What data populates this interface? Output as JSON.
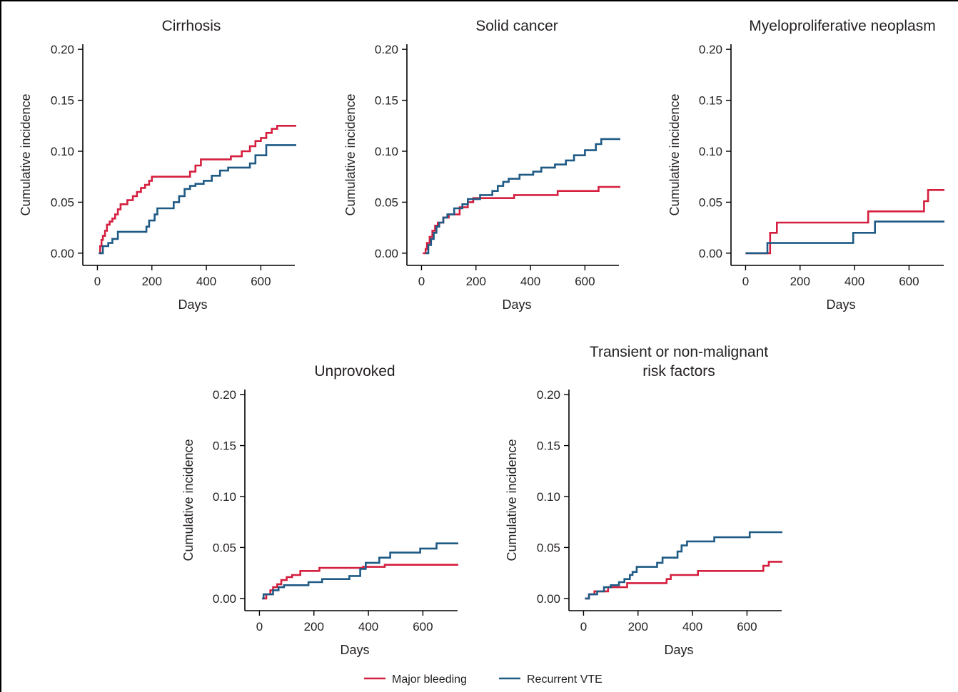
{
  "colors": {
    "major_bleeding": "#d41f3f",
    "recurrent_vte": "#1f5a85",
    "axis": "#000000",
    "text": "#231f20"
  },
  "legend": {
    "placement": "bottom-center",
    "items": [
      {
        "label": "Major bleeding",
        "color": "#d41f3f"
      },
      {
        "label": "Recurrent VTE",
        "color": "#1f5a85"
      }
    ]
  },
  "chart_data": [
    {
      "type": "line",
      "step": true,
      "title": "Cirrhosis",
      "xlabel": "Days",
      "ylabel": "Cumulative incidence",
      "xlim": [
        -30,
        730
      ],
      "ylim": [
        -0.012,
        0.205
      ],
      "xticks": [
        0,
        200,
        400,
        600
      ],
      "yticks": [
        "0.00",
        "0.05",
        "0.10",
        "0.15",
        "0.20"
      ],
      "series": [
        {
          "name": "Major bleeding",
          "color": "#d41f3f",
          "x": [
            5,
            10,
            15,
            20,
            28,
            35,
            45,
            55,
            65,
            75,
            85,
            110,
            130,
            145,
            160,
            175,
            190,
            200,
            220,
            340,
            360,
            380,
            490,
            530,
            560,
            580,
            600,
            620,
            640,
            660,
            730
          ],
          "y": [
            0,
            0.007,
            0.013,
            0.017,
            0.022,
            0.028,
            0.031,
            0.034,
            0.038,
            0.043,
            0.048,
            0.052,
            0.056,
            0.06,
            0.064,
            0.067,
            0.071,
            0.075,
            0.075,
            0.08,
            0.086,
            0.092,
            0.095,
            0.1,
            0.105,
            0.11,
            0.113,
            0.118,
            0.122,
            0.125,
            0.125
          ]
        },
        {
          "name": "Recurrent VTE",
          "color": "#1f5a85",
          "x": [
            5,
            20,
            40,
            55,
            75,
            180,
            190,
            210,
            220,
            280,
            300,
            320,
            340,
            360,
            390,
            420,
            450,
            480,
            560,
            580,
            620,
            730
          ],
          "y": [
            0,
            0.007,
            0.01,
            0.014,
            0.021,
            0.026,
            0.032,
            0.038,
            0.044,
            0.05,
            0.056,
            0.063,
            0.066,
            0.068,
            0.071,
            0.076,
            0.081,
            0.084,
            0.088,
            0.096,
            0.106,
            0.106
          ]
        }
      ]
    },
    {
      "type": "line",
      "step": true,
      "title": "Solid cancer",
      "xlabel": "Days",
      "ylabel": "Cumulative incidence",
      "xlim": [
        -30,
        730
      ],
      "ylim": [
        -0.012,
        0.205
      ],
      "xticks": [
        0,
        200,
        400,
        600
      ],
      "yticks": [
        "0.00",
        "0.05",
        "0.10",
        "0.15",
        "0.20"
      ],
      "series": [
        {
          "name": "Major bleeding",
          "color": "#d41f3f",
          "x": [
            5,
            15,
            20,
            30,
            40,
            50,
            60,
            80,
            100,
            140,
            170,
            190,
            340,
            500,
            650,
            730
          ],
          "y": [
            0,
            0.004,
            0.01,
            0.016,
            0.022,
            0.027,
            0.03,
            0.035,
            0.038,
            0.045,
            0.05,
            0.054,
            0.057,
            0.061,
            0.065,
            0.065
          ]
        },
        {
          "name": "Recurrent VTE",
          "color": "#1f5a85",
          "x": [
            15,
            25,
            35,
            45,
            55,
            65,
            80,
            95,
            120,
            150,
            170,
            215,
            260,
            280,
            300,
            320,
            360,
            410,
            440,
            490,
            530,
            560,
            600,
            640,
            660,
            730
          ],
          "y": [
            0,
            0.008,
            0.014,
            0.02,
            0.026,
            0.03,
            0.035,
            0.038,
            0.044,
            0.048,
            0.053,
            0.057,
            0.061,
            0.066,
            0.07,
            0.073,
            0.077,
            0.08,
            0.084,
            0.087,
            0.091,
            0.096,
            0.101,
            0.107,
            0.112,
            0.112
          ]
        }
      ]
    },
    {
      "type": "line",
      "step": true,
      "title": "Myeloproliferative neoplasm",
      "xlabel": "Days",
      "ylabel": "Cumulative incidence",
      "xlim": [
        -30,
        730
      ],
      "ylim": [
        -0.012,
        0.205
      ],
      "xticks": [
        0,
        200,
        400,
        600
      ],
      "yticks": [
        "0.00",
        "0.05",
        "0.10",
        "0.15",
        "0.20"
      ],
      "series": [
        {
          "name": "Major bleeding",
          "color": "#d41f3f",
          "x": [
            0,
            90,
            115,
            450,
            655,
            670,
            730
          ],
          "y": [
            0,
            0.02,
            0.03,
            0.041,
            0.051,
            0.062,
            0.062
          ]
        },
        {
          "name": "Recurrent VTE",
          "color": "#1f5a85",
          "x": [
            0,
            80,
            395,
            475,
            730
          ],
          "y": [
            0,
            0.01,
            0.02,
            0.031,
            0.031
          ]
        }
      ]
    },
    {
      "type": "line",
      "step": true,
      "title": "Unprovoked",
      "xlabel": "Days",
      "ylabel": "Cumulative incidence",
      "xlim": [
        -30,
        730
      ],
      "ylim": [
        -0.012,
        0.205
      ],
      "xticks": [
        0,
        200,
        400,
        600
      ],
      "yticks": [
        "0.00",
        "0.05",
        "0.10",
        "0.15",
        "0.20"
      ],
      "series": [
        {
          "name": "Major bleeding",
          "color": "#d41f3f",
          "x": [
            10,
            25,
            40,
            50,
            65,
            80,
            100,
            120,
            150,
            220,
            380,
            460,
            730
          ],
          "y": [
            0,
            0.004,
            0.008,
            0.011,
            0.014,
            0.018,
            0.021,
            0.023,
            0.027,
            0.03,
            0.031,
            0.033,
            0.033
          ]
        },
        {
          "name": "Recurrent VTE",
          "color": "#1f5a85",
          "x": [
            10,
            15,
            50,
            70,
            90,
            120,
            180,
            230,
            330,
            370,
            390,
            440,
            480,
            590,
            650,
            730
          ],
          "y": [
            0,
            0.004,
            0.008,
            0.011,
            0.013,
            0.013,
            0.016,
            0.019,
            0.022,
            0.029,
            0.035,
            0.04,
            0.045,
            0.049,
            0.054,
            0.054
          ]
        }
      ]
    },
    {
      "type": "line",
      "step": true,
      "title": "Transient or non-malignant risk factors",
      "title_lines": [
        "Transient or non-malignant",
        "risk factors"
      ],
      "xlabel": "Days",
      "ylabel": "Cumulative incidence",
      "xlim": [
        -30,
        730
      ],
      "ylim": [
        -0.012,
        0.205
      ],
      "xticks": [
        0,
        200,
        400,
        600
      ],
      "yticks": [
        "0.00",
        "0.05",
        "0.10",
        "0.15",
        "0.20"
      ],
      "series": [
        {
          "name": "Major bleeding",
          "color": "#d41f3f",
          "x": [
            5,
            20,
            40,
            90,
            160,
            305,
            320,
            420,
            660,
            680,
            730
          ],
          "y": [
            0,
            0.004,
            0.007,
            0.011,
            0.015,
            0.019,
            0.023,
            0.027,
            0.032,
            0.036,
            0.036
          ]
        },
        {
          "name": "Recurrent VTE",
          "color": "#1f5a85",
          "x": [
            5,
            20,
            50,
            75,
            100,
            130,
            150,
            170,
            180,
            195,
            270,
            290,
            345,
            360,
            380,
            480,
            610,
            730
          ],
          "y": [
            0,
            0.004,
            0.007,
            0.011,
            0.013,
            0.016,
            0.019,
            0.023,
            0.026,
            0.031,
            0.035,
            0.04,
            0.046,
            0.052,
            0.056,
            0.06,
            0.065,
            0.065
          ]
        }
      ]
    }
  ]
}
